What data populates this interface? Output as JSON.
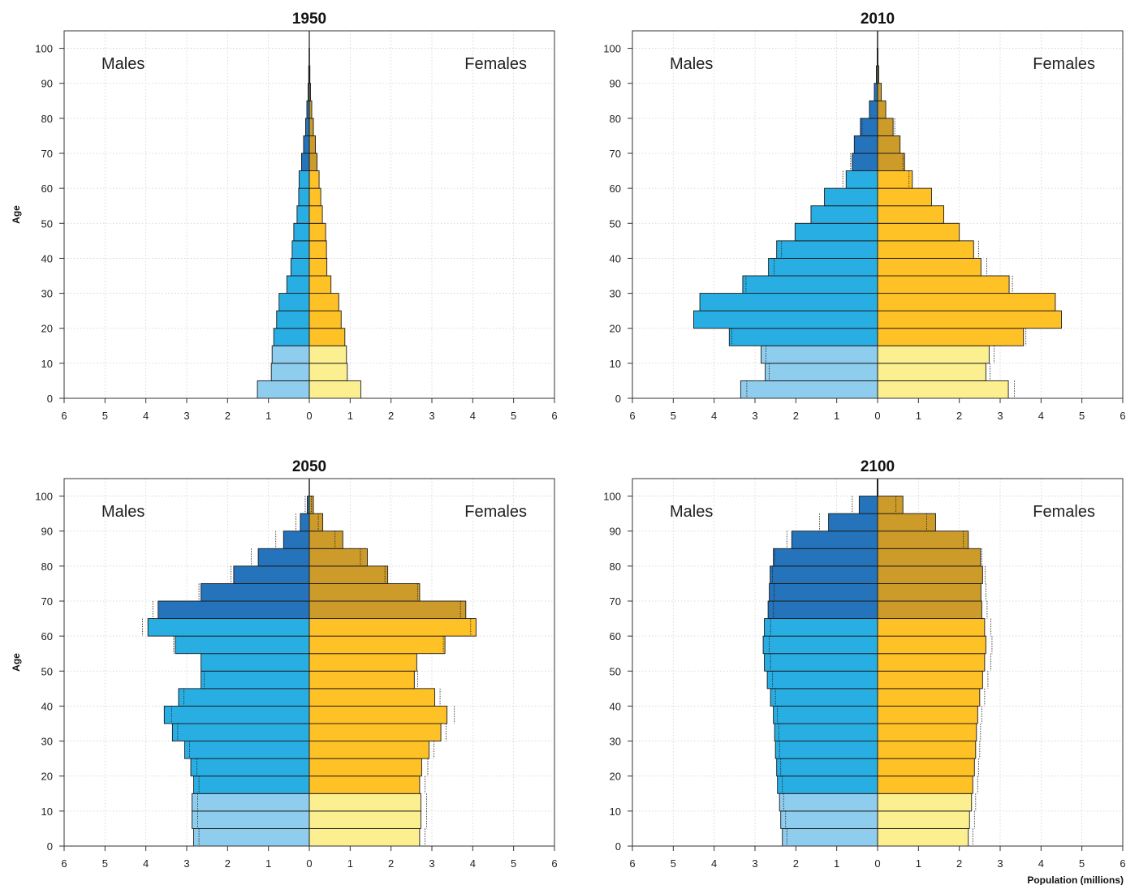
{
  "figure": {
    "xlabel": "Population (millions)",
    "ylabel": "Age",
    "colors": {
      "male_young": "#8fcdee",
      "male_working": "#29aee3",
      "male_old": "#2473bb",
      "female_young": "#fbef90",
      "female_working": "#fec126",
      "female_old": "#cc9b2a",
      "grid": "#cfcfcf",
      "outline": "#1a1a1a"
    }
  },
  "chart_data": [
    {
      "type": "bar",
      "title": "1950",
      "left_label": "Males",
      "right_label": "Females",
      "ylabel": "Age",
      "xlabel": "",
      "xlim": [
        -6,
        6
      ],
      "ylim": [
        0,
        105
      ],
      "x_ticks": [
        "6",
        "5",
        "4",
        "3",
        "2",
        "1",
        "0",
        "1",
        "2",
        "3",
        "4",
        "5",
        "6"
      ],
      "y_ticks": [
        "0",
        "10",
        "20",
        "30",
        "40",
        "50",
        "60",
        "70",
        "80",
        "90",
        "100"
      ],
      "grid": true,
      "age_groups": [
        "0-4",
        "5-9",
        "10-14",
        "15-19",
        "20-24",
        "25-29",
        "30-34",
        "35-39",
        "40-44",
        "45-49",
        "50-54",
        "55-59",
        "60-64",
        "65-69",
        "70-74",
        "75-79",
        "80-84",
        "85-89",
        "90-94",
        "95-99",
        "100+"
      ],
      "series": [
        {
          "name": "Males",
          "values": [
            1.27,
            0.93,
            0.91,
            0.87,
            0.8,
            0.74,
            0.55,
            0.45,
            0.42,
            0.38,
            0.3,
            0.26,
            0.25,
            0.19,
            0.14,
            0.09,
            0.06,
            0.03,
            0.015,
            0.007,
            0.003
          ]
        },
        {
          "name": "Females",
          "values": [
            1.26,
            0.93,
            0.91,
            0.87,
            0.78,
            0.72,
            0.53,
            0.43,
            0.42,
            0.4,
            0.32,
            0.28,
            0.24,
            0.19,
            0.15,
            0.1,
            0.06,
            0.03,
            0.015,
            0.007,
            0.003
          ]
        }
      ]
    },
    {
      "type": "bar",
      "title": "2010",
      "left_label": "Males",
      "right_label": "Females",
      "ylabel": "",
      "xlabel": "",
      "xlim": [
        -6,
        6
      ],
      "ylim": [
        0,
        105
      ],
      "x_ticks": [
        "6",
        "5",
        "4",
        "3",
        "2",
        "1",
        "0",
        "1",
        "2",
        "3",
        "4",
        "5",
        "6"
      ],
      "y_ticks": [
        "0",
        "10",
        "20",
        "30",
        "40",
        "50",
        "60",
        "70",
        "80",
        "90",
        "100"
      ],
      "grid": true,
      "age_groups": [
        "0-4",
        "5-9",
        "10-14",
        "15-19",
        "20-24",
        "25-29",
        "30-34",
        "35-39",
        "40-44",
        "45-49",
        "50-54",
        "55-59",
        "60-64",
        "65-69",
        "70-74",
        "75-79",
        "80-84",
        "85-89",
        "90-94",
        "95-99",
        "100+"
      ],
      "series": [
        {
          "name": "Males",
          "values": [
            3.35,
            2.75,
            2.85,
            3.63,
            4.5,
            4.35,
            3.3,
            2.67,
            2.47,
            2.02,
            1.63,
            1.3,
            0.77,
            0.62,
            0.57,
            0.42,
            0.2,
            0.08,
            0.03,
            0.01,
            0.005
          ]
        },
        {
          "name": "Females",
          "values": [
            3.2,
            2.65,
            2.73,
            3.57,
            4.5,
            4.35,
            3.22,
            2.53,
            2.35,
            2.0,
            1.62,
            1.32,
            0.85,
            0.66,
            0.55,
            0.38,
            0.2,
            0.09,
            0.03,
            0.01,
            0.005
          ]
        }
      ]
    },
    {
      "type": "bar",
      "title": "2050",
      "left_label": "Males",
      "right_label": "Females",
      "ylabel": "Age",
      "xlabel": "",
      "xlim": [
        -6,
        6
      ],
      "ylim": [
        0,
        105
      ],
      "x_ticks": [
        "6",
        "5",
        "4",
        "3",
        "2",
        "1",
        "0",
        "1",
        "2",
        "3",
        "4",
        "5",
        "6"
      ],
      "y_ticks": [
        "0",
        "10",
        "20",
        "30",
        "40",
        "50",
        "60",
        "70",
        "80",
        "90",
        "100"
      ],
      "grid": true,
      "age_groups": [
        "0-4",
        "5-9",
        "10-14",
        "15-19",
        "20-24",
        "25-29",
        "30-34",
        "35-39",
        "40-44",
        "45-49",
        "50-54",
        "55-59",
        "60-64",
        "65-69",
        "70-74",
        "75-79",
        "80-84",
        "85-89",
        "90-94",
        "95-99",
        "100+"
      ],
      "series": [
        {
          "name": "Males",
          "values": [
            2.83,
            2.87,
            2.87,
            2.83,
            2.9,
            3.05,
            3.35,
            3.55,
            3.2,
            2.65,
            2.65,
            3.28,
            3.95,
            3.7,
            2.65,
            1.85,
            1.25,
            0.63,
            0.22,
            0.05,
            0.005
          ]
        },
        {
          "name": "Females",
          "values": [
            2.7,
            2.73,
            2.73,
            2.7,
            2.75,
            2.93,
            3.22,
            3.37,
            3.07,
            2.57,
            2.63,
            3.32,
            4.08,
            3.83,
            2.7,
            1.92,
            1.42,
            0.82,
            0.33,
            0.1,
            0.005
          ]
        }
      ]
    },
    {
      "type": "bar",
      "title": "2100",
      "left_label": "Males",
      "right_label": "Females",
      "ylabel": "",
      "xlabel": "Population (millions)",
      "xlim": [
        -6,
        6
      ],
      "ylim": [
        0,
        105
      ],
      "x_ticks": [
        "6",
        "5",
        "4",
        "3",
        "2",
        "1",
        "0",
        "1",
        "2",
        "3",
        "4",
        "5",
        "6"
      ],
      "y_ticks": [
        "0",
        "10",
        "20",
        "30",
        "40",
        "50",
        "60",
        "70",
        "80",
        "90",
        "100"
      ],
      "grid": true,
      "age_groups": [
        "0-4",
        "5-9",
        "10-14",
        "15-19",
        "20-24",
        "25-29",
        "30-34",
        "35-39",
        "40-44",
        "45-49",
        "50-54",
        "55-59",
        "60-64",
        "65-69",
        "70-74",
        "75-79",
        "80-84",
        "85-89",
        "90-94",
        "95-99",
        "100+"
      ],
      "series": [
        {
          "name": "Males",
          "values": [
            2.33,
            2.37,
            2.4,
            2.45,
            2.47,
            2.5,
            2.52,
            2.55,
            2.62,
            2.7,
            2.77,
            2.8,
            2.77,
            2.68,
            2.65,
            2.63,
            2.55,
            2.1,
            1.2,
            0.45,
            0.01
          ]
        },
        {
          "name": "Females",
          "values": [
            2.22,
            2.25,
            2.3,
            2.33,
            2.37,
            2.4,
            2.42,
            2.45,
            2.5,
            2.57,
            2.62,
            2.65,
            2.62,
            2.55,
            2.53,
            2.57,
            2.52,
            2.22,
            1.42,
            0.62,
            0.01
          ]
        }
      ]
    }
  ]
}
